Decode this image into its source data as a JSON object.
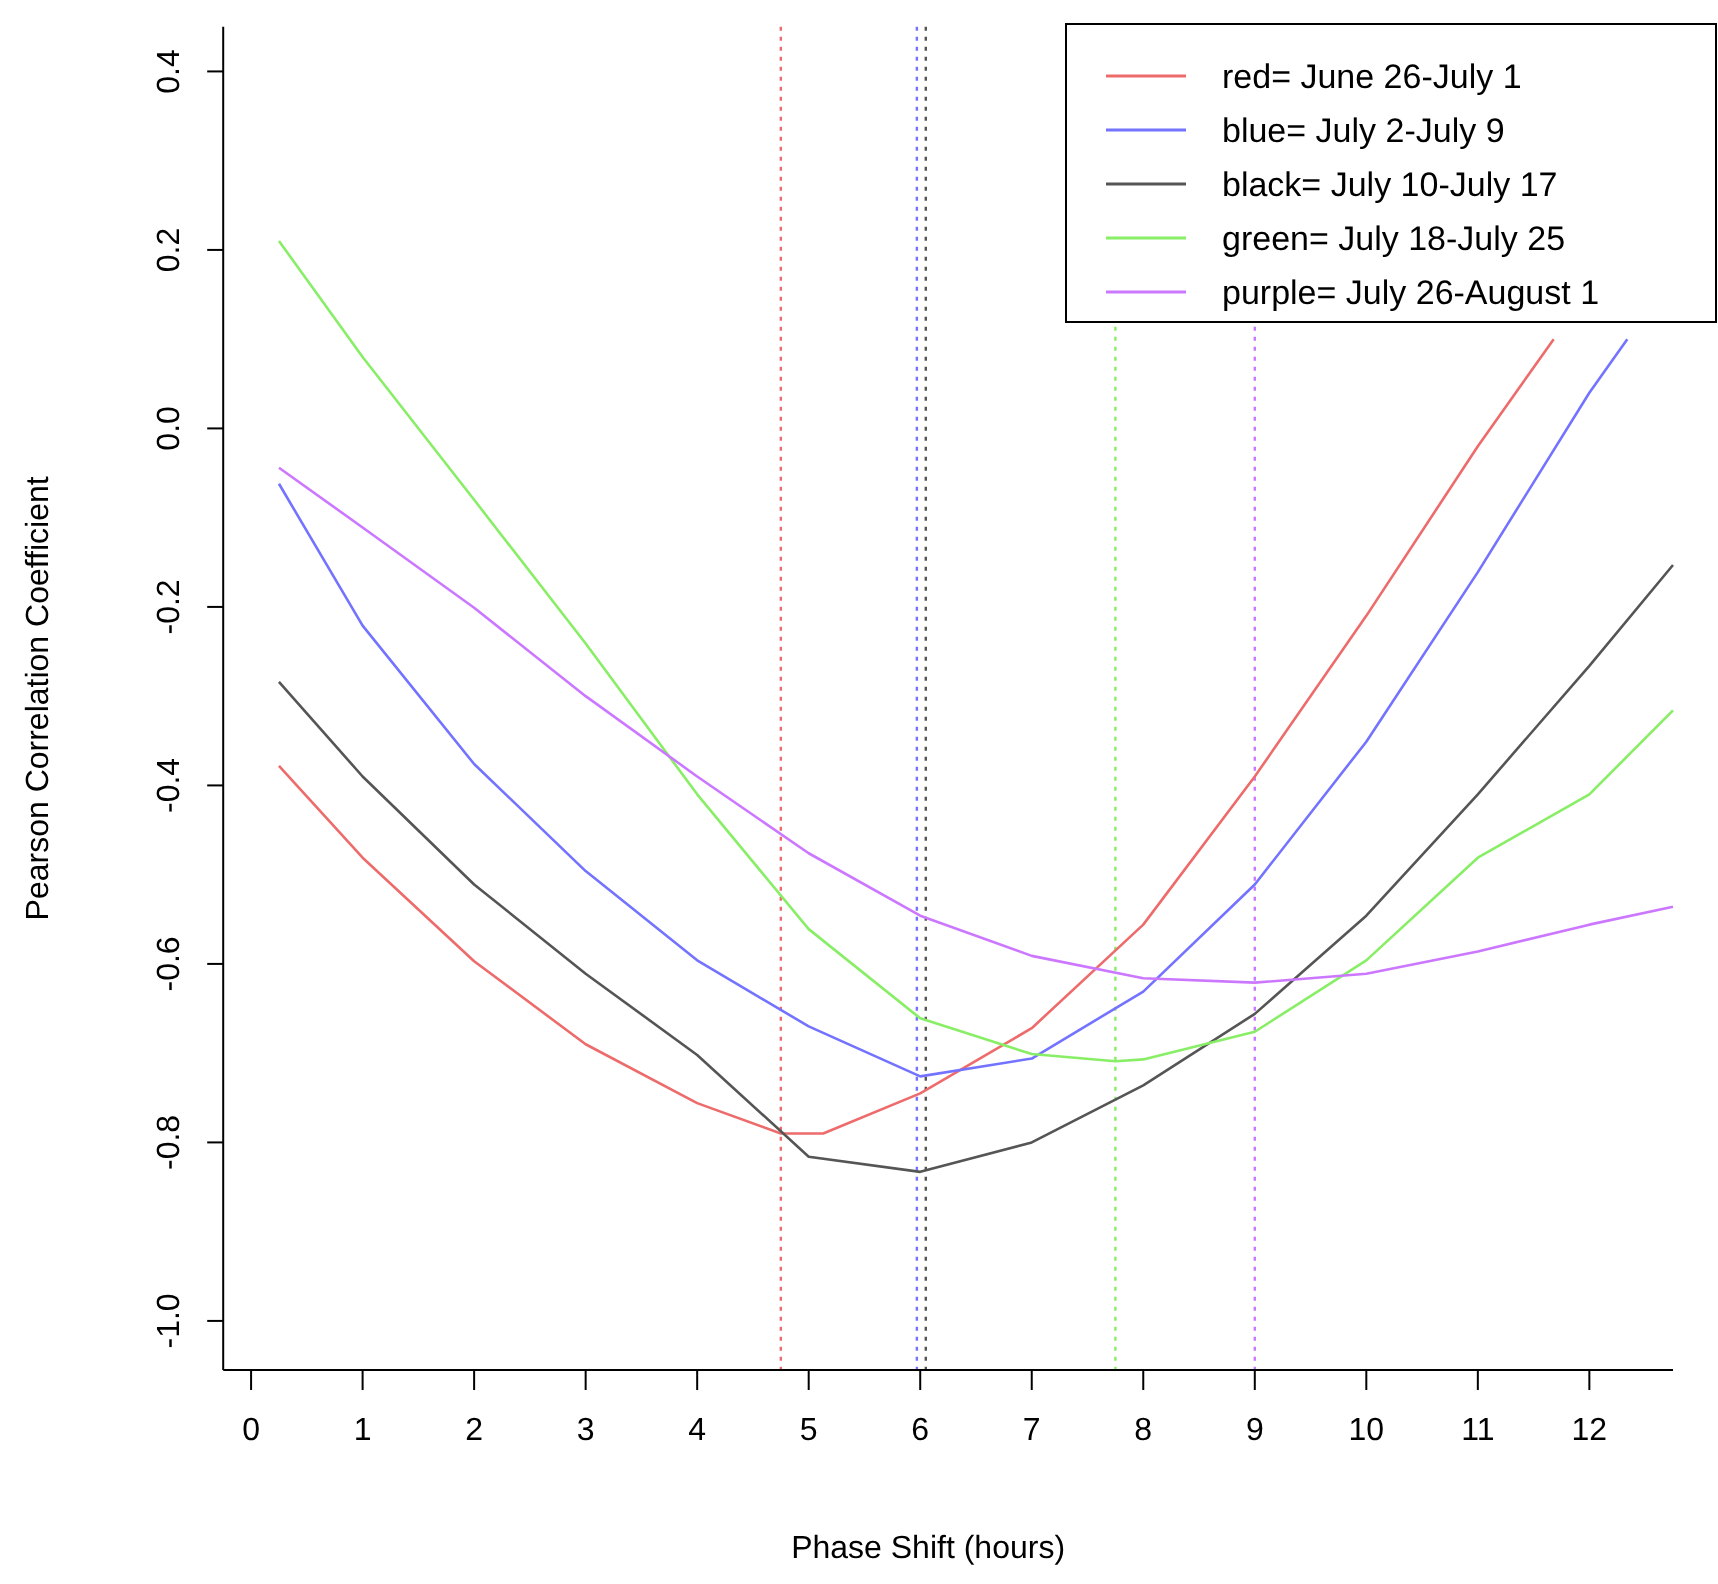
{
  "chart_data": {
    "type": "line",
    "xlabel": "Phase Shift (hours)",
    "ylabel": "Pearson Correlation Coefficient",
    "xlim": [
      -0.25,
      12.75
    ],
    "ylim": [
      -1.055,
      0.45
    ],
    "xticks": [
      0,
      1,
      2,
      3,
      4,
      5,
      6,
      7,
      8,
      9,
      10,
      11,
      12
    ],
    "yticks": [
      {
        "value": -1,
        "label": "-1.0"
      },
      {
        "value": -0.8,
        "label": "-0.8"
      },
      {
        "value": -0.6,
        "label": "-0.6"
      },
      {
        "value": -0.4,
        "label": "-0.4"
      },
      {
        "value": -0.2,
        "label": "-0.2"
      },
      {
        "value": 0,
        "label": "0.0"
      },
      {
        "value": 0.2,
        "label": "0.2"
      },
      {
        "value": 0.4,
        "label": "0.4"
      }
    ],
    "grid": false,
    "legend": "top right",
    "line_style": "solid",
    "marker": "none",
    "series": [
      {
        "name": "red= June 26-July 1",
        "color": "#ee6b6b",
        "x": [
          0.25,
          1,
          2,
          3,
          4,
          4.75,
          5.13,
          6,
          7,
          8,
          9,
          10,
          11,
          11.68
        ],
        "values": [
          -0.378,
          -0.481,
          -0.597,
          -0.69,
          -0.756,
          -0.79,
          -0.79,
          -0.745,
          -0.672,
          -0.556,
          -0.39,
          -0.21,
          -0.02,
          0.1
        ]
      },
      {
        "name": "blue= July 2-July 9",
        "color": "#7373ff",
        "x": [
          0.25,
          1,
          2,
          3,
          4,
          5,
          6,
          7,
          8,
          9,
          10,
          11,
          12,
          12.34
        ],
        "values": [
          -0.062,
          -0.221,
          -0.376,
          -0.496,
          -0.596,
          -0.67,
          -0.726,
          -0.706,
          -0.631,
          -0.511,
          -0.351,
          -0.161,
          0.04,
          0.1
        ]
      },
      {
        "name": "black= July 10-July 17",
        "color": "#555555",
        "x": [
          0.25,
          1,
          2,
          3,
          4,
          5,
          6,
          7,
          8,
          9,
          10,
          11,
          12,
          12.75
        ],
        "values": [
          -0.284,
          -0.39,
          -0.511,
          -0.611,
          -0.702,
          -0.816,
          -0.833,
          -0.8,
          -0.736,
          -0.656,
          -0.546,
          -0.41,
          -0.266,
          -0.153
        ]
      },
      {
        "name": "green= July 18-July 25",
        "color": "#88ee66",
        "x": [
          0.25,
          1,
          2,
          3,
          4,
          5,
          6,
          7,
          7.75,
          8,
          9,
          10,
          11,
          12,
          12.75
        ],
        "values": [
          0.21,
          0.08,
          -0.08,
          -0.241,
          -0.41,
          -0.561,
          -0.661,
          -0.701,
          -0.709,
          -0.707,
          -0.676,
          -0.596,
          -0.481,
          -0.41,
          -0.316
        ]
      },
      {
        "name": "purple= July 26-August 1",
        "color": "#cc77ff",
        "x": [
          0.25,
          1,
          2,
          3,
          4,
          5,
          6,
          7,
          8,
          9,
          10,
          11,
          12,
          12.75
        ],
        "values": [
          -0.044,
          -0.111,
          -0.201,
          -0.3,
          -0.39,
          -0.476,
          -0.546,
          -0.591,
          -0.616,
          -0.621,
          -0.611,
          -0.586,
          -0.556,
          -0.536
        ]
      }
    ],
    "ref_lines": [
      {
        "axis": "x",
        "value": 4.75,
        "color": "#ee6b6b",
        "line_style": "dotted"
      },
      {
        "axis": "x",
        "value": 5.97,
        "color": "#7373ff",
        "line_style": "dotted"
      },
      {
        "axis": "x",
        "value": 6.05,
        "color": "#555555",
        "line_style": "dotted"
      },
      {
        "axis": "x",
        "value": 7.75,
        "color": "#88ee66",
        "line_style": "dotted"
      },
      {
        "axis": "x",
        "value": 9,
        "color": "#cc77ff",
        "line_style": "dotted"
      }
    ]
  }
}
